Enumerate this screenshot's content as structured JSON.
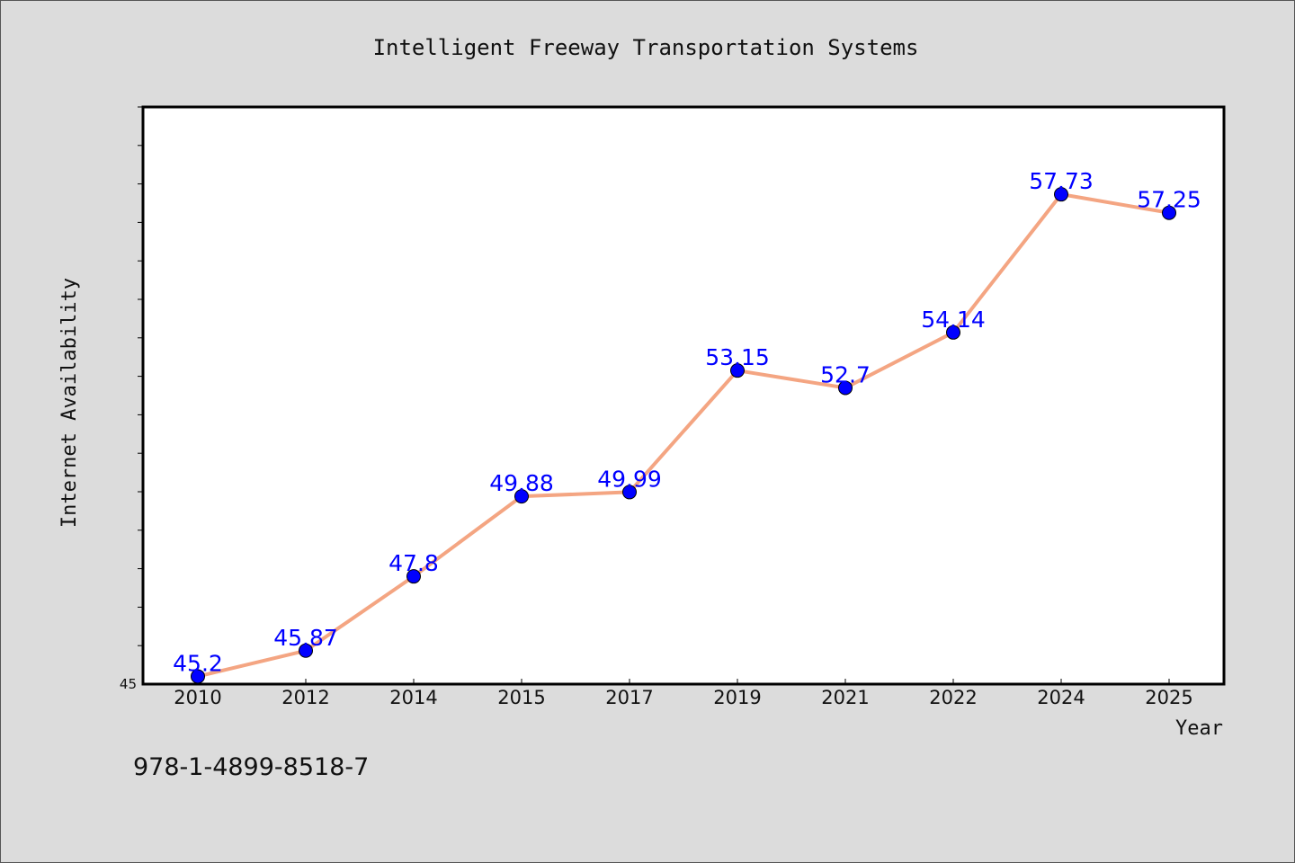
{
  "chart_data": {
    "type": "line",
    "title": "Intelligent Freeway Transportation Systems",
    "xlabel": "Year",
    "ylabel": "Internet Availability",
    "categories": [
      "2010",
      "2012",
      "2014",
      "2015",
      "2017",
      "2019",
      "2021",
      "2022",
      "2024",
      "2025"
    ],
    "series": [
      {
        "values": [
          45.2,
          45.87,
          47.8,
          49.88,
          49.99,
          53.15,
          52.7,
          54.14,
          57.73,
          57.25
        ],
        "labels": [
          "45.2",
          "45.87",
          "47.8",
          "49.88",
          "49.99",
          "53.15",
          "52.7",
          "54.14",
          "57.73",
          "57.25"
        ],
        "line_color": "#f4a582",
        "marker_color": "#0000ff"
      }
    ],
    "ylim": [
      45,
      60
    ],
    "yticks_labeled": [
      "45"
    ],
    "ytick_step": 1,
    "grid": false,
    "label_color": "#0000ff",
    "background": "#dcdcdc",
    "plot_background": "#ffffff"
  },
  "footer": {
    "text": "978-1-4899-8518-7"
  }
}
